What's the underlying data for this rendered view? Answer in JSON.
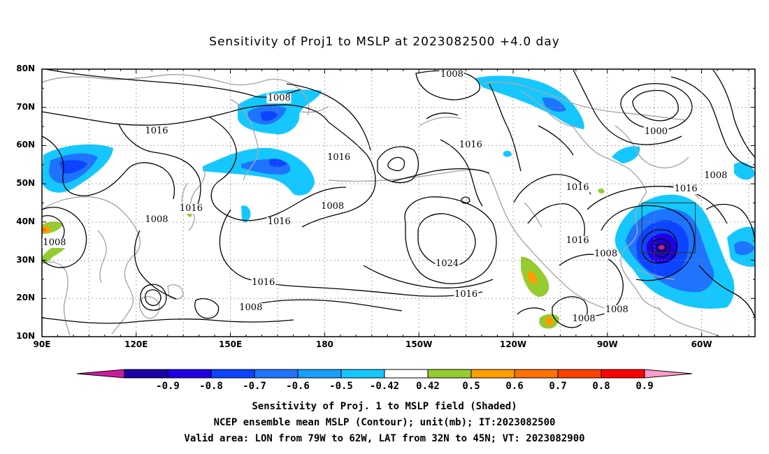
{
  "title": "Sensitivity of Proj1 to MSLP at 2023082500 +4.0 day",
  "map": {
    "lat_labels": [
      "80N",
      "70N",
      "60N",
      "50N",
      "40N",
      "30N",
      "20N",
      "10N"
    ],
    "lon_labels": [
      "90E",
      "120E",
      "150E",
      "180",
      "150W",
      "120W",
      "90W",
      "60W"
    ],
    "contour_labels": [
      {
        "text": "1008",
        "lon": 165.5,
        "lat": 72.3
      },
      {
        "text": "1008",
        "lon": 220.5,
        "lat": 78.5
      },
      {
        "text": "1016",
        "lon": 126.5,
        "lat": 63.7
      },
      {
        "text": "1016",
        "lon": 184.5,
        "lat": 56.7
      },
      {
        "text": "1016",
        "lon": 226.5,
        "lat": 60.0
      },
      {
        "text": "1000",
        "lon": 285.5,
        "lat": 63.5
      },
      {
        "text": "1016",
        "lon": 137.5,
        "lat": 43.5
      },
      {
        "text": "1008",
        "lon": 182.5,
        "lat": 44.0
      },
      {
        "text": "1016",
        "lon": 165.5,
        "lat": 40.0
      },
      {
        "text": "1008",
        "lon": 126.5,
        "lat": 40.5
      },
      {
        "text": "1008",
        "lon": 94.0,
        "lat": 34.5
      },
      {
        "text": "1016",
        "lon": 260.5,
        "lat": 49.0
      },
      {
        "text": "1016",
        "lon": 295.0,
        "lat": 48.5
      },
      {
        "text": "1008",
        "lon": 304.5,
        "lat": 52.0
      },
      {
        "text": "1016",
        "lon": 260.5,
        "lat": 35.0
      },
      {
        "text": "1008",
        "lon": 269.5,
        "lat": 31.5
      },
      {
        "text": "1024",
        "lon": 219.0,
        "lat": 29.0
      },
      {
        "text": "1016",
        "lon": 160.5,
        "lat": 24.0
      },
      {
        "text": "1016",
        "lon": 225.0,
        "lat": 21.0
      },
      {
        "text": "1008",
        "lon": 156.5,
        "lat": 17.5
      },
      {
        "text": "1008",
        "lon": 273.0,
        "lat": 17.0
      },
      {
        "text": "1008",
        "lon": 262.5,
        "lat": 14.5
      }
    ]
  },
  "colorbar": {
    "labels": [
      "-0.9",
      "-0.8",
      "-0.7",
      "-0.6",
      "-0.5",
      "-0.42",
      "0.42",
      "0.5",
      "0.6",
      "0.7",
      "0.8",
      "0.9"
    ],
    "colors": [
      "#1a00a8",
      "#1f00e6",
      "#0d44ff",
      "#1e73ff",
      "#179fff",
      "#14c8ff",
      "#ffffff",
      "#95cc30",
      "#ff9d00",
      "#ff7100",
      "#ff4100",
      "#ff0000"
    ],
    "end_low": "#cc1b9e",
    "end_high": "#ff9ccc"
  },
  "caption": {
    "line1": "Sensitivity of Proj. 1 to MSLP field (Shaded)",
    "line2": "NCEP ensemble mean MSLP (Contour); unit(mb); IT:2023082500",
    "line3": "Valid area: LON from 79W to 62W, LAT from 32N to 45N; VT: 2023082900"
  },
  "valid_area": {
    "lon_min": 281,
    "lon_max": 298,
    "lat_min": 32,
    "lat_max": 45
  }
}
